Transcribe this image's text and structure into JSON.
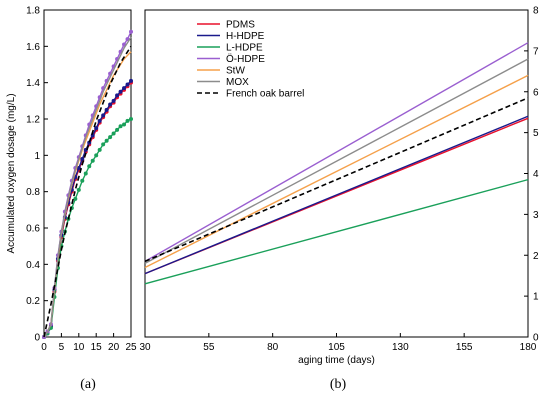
{
  "chart_data": [
    {
      "panel": "(a)",
      "type": "line",
      "xlabel": "",
      "ylabel": "Accumulated oxygen dosage (mg/L)",
      "xlim": [
        0,
        25
      ],
      "ylim": [
        0,
        1.8
      ],
      "x_ticks": [
        "0",
        "5",
        "10",
        "15",
        "20",
        "25"
      ],
      "y_ticks": [
        "0",
        "0.2",
        "0.4",
        "0.6",
        "0.8",
        "1",
        "1.2",
        "1.4",
        "1.6",
        "1.8"
      ],
      "x": [
        0,
        1,
        2,
        3,
        4,
        5,
        6,
        7,
        8,
        9,
        10,
        11,
        12,
        13,
        14,
        15,
        16,
        17,
        18,
        19,
        20,
        21,
        22,
        23,
        24,
        25
      ],
      "series": [
        {
          "name": "PDMS",
          "color": "#e8102c",
          "marker": true,
          "values": [
            0,
            0.02,
            0.06,
            0.25,
            0.42,
            0.55,
            0.65,
            0.73,
            0.8,
            0.87,
            0.92,
            0.97,
            1.02,
            1.06,
            1.1,
            1.14,
            1.18,
            1.21,
            1.24,
            1.27,
            1.29,
            1.32,
            1.34,
            1.36,
            1.38,
            1.4
          ]
        },
        {
          "name": "H-HDPE",
          "color": "#1a1a8c",
          "marker": true,
          "values": [
            0,
            0.02,
            0.06,
            0.26,
            0.43,
            0.56,
            0.66,
            0.74,
            0.81,
            0.88,
            0.93,
            0.98,
            1.03,
            1.07,
            1.11,
            1.15,
            1.19,
            1.22,
            1.25,
            1.28,
            1.3,
            1.33,
            1.35,
            1.37,
            1.39,
            1.41
          ]
        },
        {
          "name": "L-HDPE",
          "color": "#1aa05a",
          "marker": true,
          "values": [
            0,
            0.02,
            0.05,
            0.22,
            0.38,
            0.5,
            0.58,
            0.65,
            0.71,
            0.76,
            0.81,
            0.86,
            0.9,
            0.94,
            0.97,
            1.0,
            1.03,
            1.06,
            1.08,
            1.1,
            1.12,
            1.14,
            1.16,
            1.17,
            1.19,
            1.2
          ]
        },
        {
          "name": "Ö-HDPE",
          "color": "#9a5fd0",
          "marker": true,
          "values": [
            0,
            0.03,
            0.07,
            0.27,
            0.45,
            0.58,
            0.69,
            0.78,
            0.86,
            0.93,
            0.99,
            1.05,
            1.11,
            1.17,
            1.22,
            1.27,
            1.32,
            1.37,
            1.41,
            1.45,
            1.49,
            1.53,
            1.57,
            1.61,
            1.64,
            1.68
          ]
        },
        {
          "name": "StW",
          "color": "#f5a04a",
          "marker": false,
          "values": [
            0,
            0.03,
            0.07,
            0.26,
            0.43,
            0.57,
            0.67,
            0.76,
            0.84,
            0.91,
            0.97,
            1.03,
            1.08,
            1.13,
            1.18,
            1.23,
            1.28,
            1.32,
            1.36,
            1.4,
            1.44,
            1.47,
            1.5,
            1.53,
            1.55,
            1.57
          ]
        },
        {
          "name": "MOX",
          "color": "#8c8c8c",
          "marker": false,
          "values": [
            0,
            0.03,
            0.07,
            0.27,
            0.44,
            0.58,
            0.68,
            0.77,
            0.85,
            0.92,
            0.98,
            1.04,
            1.1,
            1.15,
            1.2,
            1.25,
            1.3,
            1.35,
            1.39,
            1.43,
            1.47,
            1.51,
            1.55,
            1.59,
            1.62,
            1.65
          ]
        },
        {
          "name": "French oak barrel",
          "color": "#000000",
          "marker": false,
          "dashed": true,
          "values": [
            0,
            0.09,
            0.18,
            0.28,
            0.38,
            0.48,
            0.57,
            0.65,
            0.73,
            0.81,
            0.88,
            0.95,
            1.01,
            1.07,
            1.13,
            1.19,
            1.24,
            1.29,
            1.34,
            1.39,
            1.43,
            1.47,
            1.51,
            1.54,
            1.57,
            1.6
          ]
        }
      ]
    },
    {
      "panel": "(b)",
      "type": "line",
      "xlabel": "aging time (days)",
      "ylabel": "",
      "xlim": [
        30,
        180
      ],
      "ylim": [
        0,
        8
      ],
      "x_ticks": [
        "30",
        "55",
        "80",
        "105",
        "130",
        "155",
        "180"
      ],
      "y_ticks": [
        "0",
        "1",
        "2",
        "3",
        "4",
        "5",
        "6",
        "7",
        "8"
      ],
      "legend_position": "top-left",
      "x": [
        30,
        180
      ],
      "series": [
        {
          "name": "PDMS",
          "color": "#e8102c",
          "values": [
            1.55,
            5.35
          ]
        },
        {
          "name": "H-HDPE",
          "color": "#1a1a8c",
          "values": [
            1.55,
            5.4
          ]
        },
        {
          "name": "L-HDPE",
          "color": "#1aa05a",
          "values": [
            1.3,
            3.85
          ]
        },
        {
          "name": "Ö-HDPE",
          "color": "#9a5fd0",
          "values": [
            1.85,
            7.2
          ]
        },
        {
          "name": "StW",
          "color": "#f5a04a",
          "values": [
            1.7,
            6.4
          ]
        },
        {
          "name": "MOX",
          "color": "#8c8c8c",
          "values": [
            1.8,
            6.8
          ]
        },
        {
          "name": "French oak barrel",
          "color": "#000000",
          "dashed": true,
          "values": [
            1.85,
            5.85
          ]
        }
      ]
    }
  ]
}
